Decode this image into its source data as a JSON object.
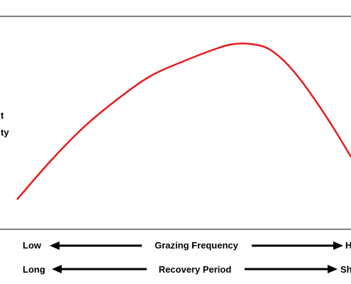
{
  "chart_data": {
    "type": "line",
    "title": "",
    "xlabel": "",
    "ylabel": "",
    "y_axis_label_fragments": [
      "t",
      "ty"
    ],
    "x_axis_scales": [
      {
        "low_label": "Low",
        "title": "Grazing Frequency",
        "high_label": "H"
      },
      {
        "low_label": "Long",
        "title": "Recovery Period",
        "high_label": "Sh"
      }
    ],
    "xlim": [
      0,
      100
    ],
    "ylim": [
      0,
      100
    ],
    "grid": false,
    "series": [
      {
        "color": "#e8191c",
        "x": [
          0,
          10,
          20,
          30,
          40,
          50,
          60,
          65,
          70,
          75,
          80,
          85,
          90,
          95,
          100
        ],
        "y": [
          14,
          32,
          48,
          61,
          72,
          79,
          85,
          87,
          87,
          85,
          79,
          70,
          59,
          47,
          34
        ]
      }
    ]
  },
  "colors": {
    "curve": "#e8191c",
    "frame": "#000000",
    "arrows": "#000000"
  }
}
